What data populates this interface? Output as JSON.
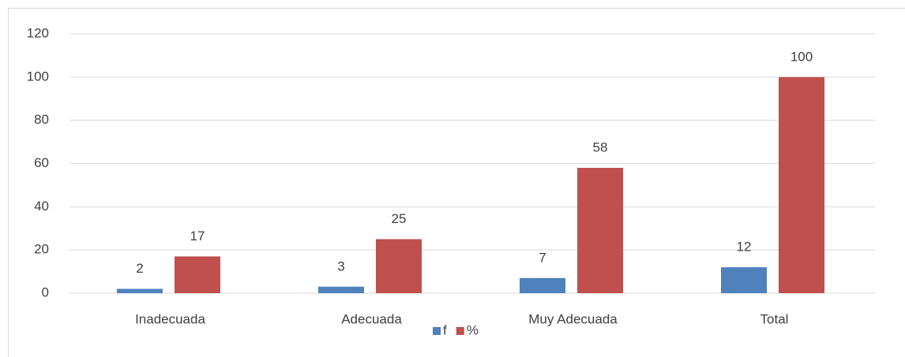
{
  "chart_data": {
    "type": "bar",
    "categories": [
      "Inadecuada",
      "Adecuada",
      "Muy Adecuada",
      "Total"
    ],
    "series": [
      {
        "name": "f",
        "color": "#4f81bd",
        "values": [
          2,
          3,
          7,
          12
        ]
      },
      {
        "name": "%",
        "color": "#c0504d",
        "values": [
          17,
          25,
          58,
          100
        ]
      }
    ],
    "ylim": [
      0,
      120
    ],
    "yticks": [
      0,
      20,
      40,
      60,
      80,
      100,
      120
    ],
    "grid": true,
    "legend": "bottom"
  }
}
